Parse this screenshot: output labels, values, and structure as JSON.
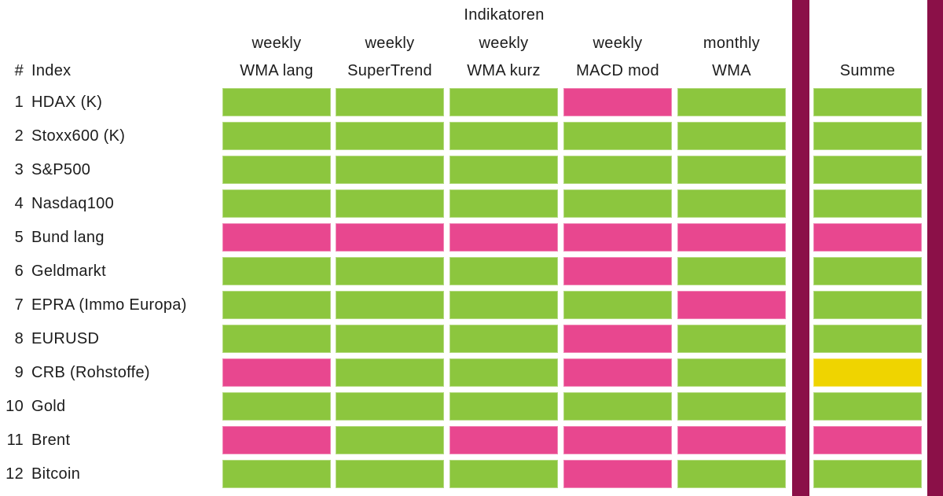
{
  "chart_data": {
    "type": "heatmap",
    "title": "Indikatoren",
    "corner_header_symbol": "#",
    "corner_header_label": "Index",
    "summe_header": "Summe",
    "columns": [
      {
        "period": "weekly",
        "name": "WMA lang"
      },
      {
        "period": "weekly",
        "name": "SuperTrend"
      },
      {
        "period": "weekly",
        "name": "WMA kurz"
      },
      {
        "period": "weekly",
        "name": "MACD mod"
      },
      {
        "period": "monthly",
        "name": "WMA"
      }
    ],
    "rows": [
      {
        "num": "1",
        "label": "HDAX (K)",
        "cells": [
          "green",
          "green",
          "green",
          "pink",
          "green"
        ],
        "summe": "green"
      },
      {
        "num": "2",
        "label": "Stoxx600 (K)",
        "cells": [
          "green",
          "green",
          "green",
          "green",
          "green"
        ],
        "summe": "green"
      },
      {
        "num": "3",
        "label": "S&P500",
        "cells": [
          "green",
          "green",
          "green",
          "green",
          "green"
        ],
        "summe": "green"
      },
      {
        "num": "4",
        "label": "Nasdaq100",
        "cells": [
          "green",
          "green",
          "green",
          "green",
          "green"
        ],
        "summe": "green"
      },
      {
        "num": "5",
        "label": "Bund lang",
        "cells": [
          "pink",
          "pink",
          "pink",
          "pink",
          "pink"
        ],
        "summe": "pink"
      },
      {
        "num": "6",
        "label": "Geldmarkt",
        "cells": [
          "green",
          "green",
          "green",
          "pink",
          "green"
        ],
        "summe": "green"
      },
      {
        "num": "7",
        "label": "EPRA (Immo Europa)",
        "cells": [
          "green",
          "green",
          "green",
          "green",
          "pink"
        ],
        "summe": "green"
      },
      {
        "num": "8",
        "label": "EURUSD",
        "cells": [
          "green",
          "green",
          "green",
          "pink",
          "green"
        ],
        "summe": "green"
      },
      {
        "num": "9",
        "label": "CRB (Rohstoffe)",
        "cells": [
          "pink",
          "green",
          "green",
          "pink",
          "green"
        ],
        "summe": "yellow"
      },
      {
        "num": "10",
        "label": "Gold",
        "cells": [
          "green",
          "green",
          "green",
          "green",
          "green"
        ],
        "summe": "green"
      },
      {
        "num": "11",
        "label": "Brent",
        "cells": [
          "pink",
          "green",
          "pink",
          "pink",
          "pink"
        ],
        "summe": "pink"
      },
      {
        "num": "12",
        "label": "Bitcoin",
        "cells": [
          "green",
          "green",
          "green",
          "pink",
          "green"
        ],
        "summe": "green"
      }
    ]
  },
  "colors": {
    "green": "#8CC63E",
    "pink": "#E8478F",
    "yellow": "#EFD400",
    "divider": "#8B1048",
    "text": "#1c1c1c"
  }
}
